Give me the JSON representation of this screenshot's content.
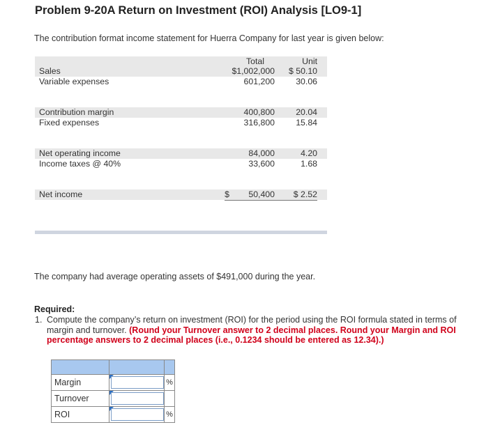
{
  "title": "Problem 9-20A Return on Investment (ROI) Analysis [LO9-1]",
  "intro": "The contribution format income statement for Huerra Company for last year is given below:",
  "statement": {
    "col_total": "Total",
    "col_unit": "Unit",
    "rows": [
      {
        "label": "Sales",
        "total": "$1,002,000",
        "unit": "$ 50.10"
      },
      {
        "label": "Variable expenses",
        "total": "601,200",
        "unit": "30.06"
      },
      {
        "label": "Contribution margin",
        "total": "400,800",
        "unit": "20.04"
      },
      {
        "label": "Fixed expenses",
        "total": "316,800",
        "unit": "15.84"
      },
      {
        "label": "Net operating income",
        "total": "84,000",
        "unit": "4.20"
      },
      {
        "label": "Income taxes @ 40%",
        "total": "33,600",
        "unit": "1.68"
      }
    ],
    "net_income": {
      "label": "Net income",
      "dollar": "$",
      "total": "50,400",
      "unit": "$ 2.52"
    }
  },
  "assets_text": "The company had average operating assets of $491,000 during the year.",
  "required": {
    "heading": "Required:",
    "number": "1.",
    "text": "Compute the company’s return on investment (ROI) for the period using the ROI formula stated in terms of margin and turnover.",
    "instruction": "(Round your Turnover answer to 2 decimal places. Round your Margin and ROI percentage answers to 2 decimal places (i.e., 0.1234 should be entered as 12.34).)"
  },
  "answer_table": {
    "rows": [
      {
        "label": "Margin",
        "value": "",
        "unit": "%"
      },
      {
        "label": "Turnover",
        "value": "",
        "unit": ""
      },
      {
        "label": "ROI",
        "value": "",
        "unit": "%"
      }
    ]
  }
}
